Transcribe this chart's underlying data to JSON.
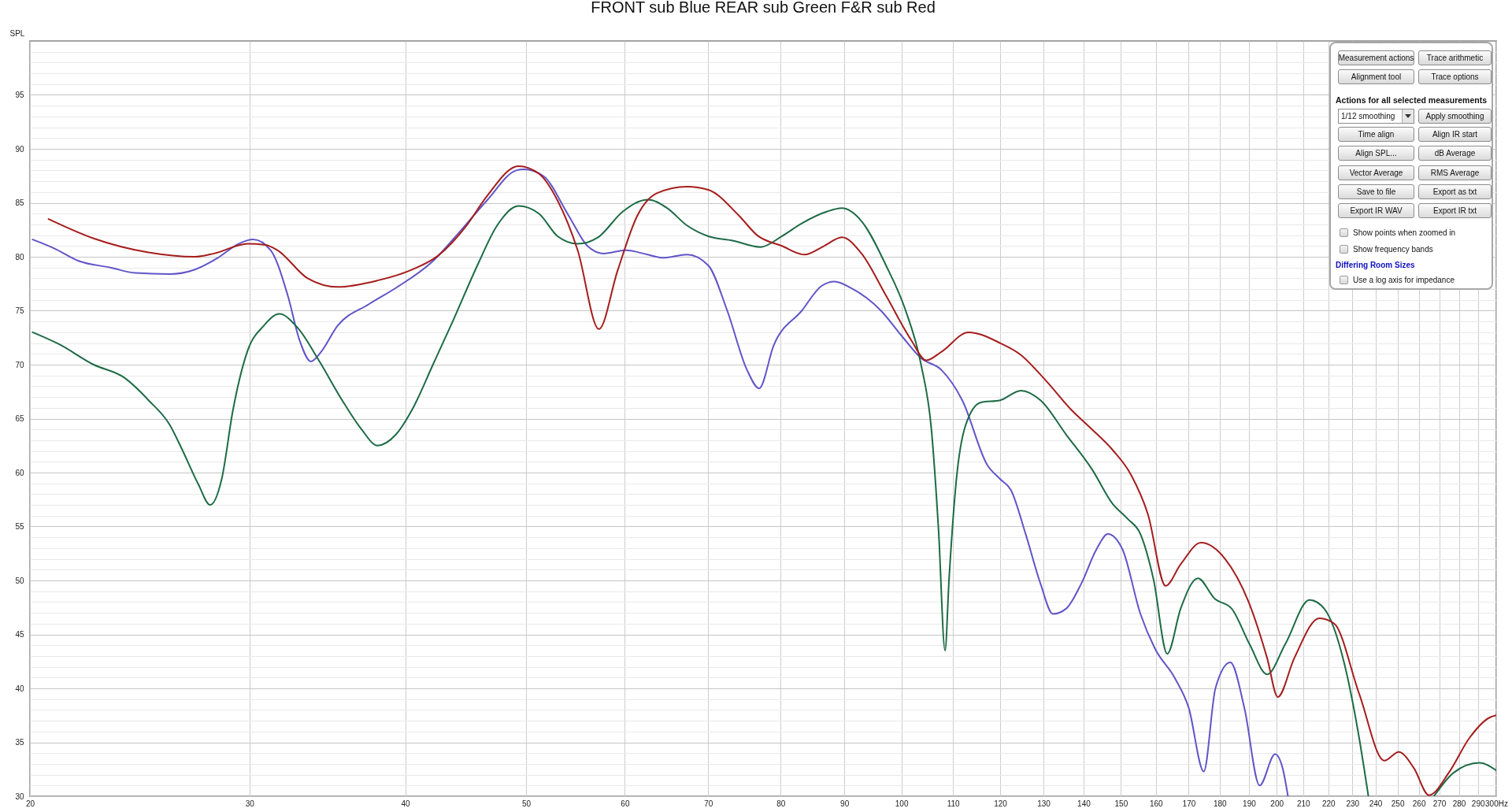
{
  "chart_data": {
    "type": "line",
    "title": "FRONT sub Blue REAR sub Green F&R sub Red",
    "ylabel": "SPL",
    "log": "x",
    "grid": true,
    "line_style": "solid",
    "xlim": [
      20,
      300
    ],
    "ylim": [
      30,
      100
    ],
    "xticks": [
      20,
      30,
      40,
      50,
      60,
      70,
      80,
      90,
      100,
      110,
      120,
      130,
      140,
      150,
      160,
      170,
      180,
      190,
      200,
      210,
      220,
      230,
      240,
      250,
      260,
      270,
      280,
      290,
      {
        "value": 300,
        "label": "300Hz"
      }
    ],
    "yticks": [
      30,
      {
        "value": 31,
        "label": null
      },
      {
        "value": 32,
        "label": null
      },
      {
        "value": 33,
        "label": null
      },
      {
        "value": 34,
        "label": null
      },
      35,
      {
        "value": 36,
        "label": null
      },
      {
        "value": 37,
        "label": null
      },
      {
        "value": 38,
        "label": null
      },
      {
        "value": 39,
        "label": null
      },
      40,
      {
        "value": 41,
        "label": null
      },
      {
        "value": 42,
        "label": null
      },
      {
        "value": 43,
        "label": null
      },
      {
        "value": 44,
        "label": null
      },
      45,
      {
        "value": 46,
        "label": null
      },
      {
        "value": 47,
        "label": null
      },
      {
        "value": 48,
        "label": null
      },
      {
        "value": 49,
        "label": null
      },
      50,
      {
        "value": 51,
        "label": null
      },
      {
        "value": 52,
        "label": null
      },
      {
        "value": 53,
        "label": null
      },
      {
        "value": 54,
        "label": null
      },
      55,
      {
        "value": 56,
        "label": null
      },
      {
        "value": 57,
        "label": null
      },
      {
        "value": 58,
        "label": null
      },
      {
        "value": 59,
        "label": null
      },
      60,
      {
        "value": 61,
        "label": null
      },
      {
        "value": 62,
        "label": null
      },
      {
        "value": 63,
        "label": null
      },
      {
        "value": 64,
        "label": null
      },
      65,
      {
        "value": 66,
        "label": null
      },
      {
        "value": 67,
        "label": null
      },
      {
        "value": 68,
        "label": null
      },
      {
        "value": 69,
        "label": null
      },
      70,
      {
        "value": 71,
        "label": null
      },
      {
        "value": 72,
        "label": null
      },
      {
        "value": 73,
        "label": null
      },
      {
        "value": 74,
        "label": null
      },
      75,
      {
        "value": 76,
        "label": null
      },
      {
        "value": 77,
        "label": null
      },
      {
        "value": 78,
        "label": null
      },
      {
        "value": 79,
        "label": null
      },
      80,
      {
        "value": 81,
        "label": null
      },
      {
        "value": 82,
        "label": null
      },
      {
        "value": 83,
        "label": null
      },
      {
        "value": 84,
        "label": null
      },
      85,
      {
        "value": 86,
        "label": null
      },
      {
        "value": 87,
        "label": null
      },
      {
        "value": 88,
        "label": null
      },
      {
        "value": 89,
        "label": null
      },
      90,
      {
        "value": 91,
        "label": null
      },
      {
        "value": 92,
        "label": null
      },
      {
        "value": 93,
        "label": null
      },
      {
        "value": 94,
        "label": null
      },
      95,
      {
        "value": 96,
        "label": null
      },
      {
        "value": 97,
        "label": null
      },
      {
        "value": 98,
        "label": null
      },
      {
        "value": 99,
        "label": null
      }
    ],
    "series": [
      {
        "color": "#6055c8",
        "x": [
          20.1,
          20.9,
          21.9,
          23.2,
          24.3,
          25.9,
          27.1,
          28.3,
          29.4,
          30.2,
          31.2,
          32.2,
          32.9,
          33.6,
          34.2,
          35.3,
          37.4,
          39.3,
          42.1,
          44.3,
          46.5,
          49.1,
          49.8,
          51.6,
          54.1,
          56.0,
          57.7,
          60.1,
          62.6,
          64.4,
          67.3,
          70.0,
          72.5,
          75.2,
          76.9,
          79.0,
          83.2,
          86.3,
          88.4,
          91.1,
          96.3,
          100,
          103.7,
          107.7,
          111.9,
          117.2,
          120,
          122.4,
          125.8,
          129.3,
          132.3,
          135.6,
          139.4,
          143.4,
          146.4,
          150.4,
          155.5,
          159.7,
          165.8,
          170.0,
          174.8,
          178.6,
          183.6,
          188.4,
          193.8,
          199.4,
          202.2,
          204.2
        ],
        "values": [
          81.6,
          80.8,
          79.6,
          79.0,
          78.5,
          78.4,
          78.8,
          79.9,
          81.2,
          81.6,
          80.6,
          76.4,
          72.3,
          70.3,
          71.1,
          73.6,
          75.6,
          77.1,
          79.6,
          82.4,
          85.2,
          88.0,
          88.1,
          87.5,
          83.8,
          81.0,
          80.3,
          80.6,
          80.2,
          79.9,
          80.2,
          79.2,
          75.0,
          69.5,
          67.8,
          71.8,
          75.0,
          77.3,
          77.7,
          77.1,
          75.0,
          72.7,
          70.6,
          69.5,
          66.7,
          60.7,
          59.4,
          58.4,
          54.3,
          49.7,
          46.9,
          47.4,
          49.7,
          52.9,
          54.3,
          52.9,
          46.9,
          43.7,
          40.9,
          38.2,
          32.3,
          40.0,
          42.4,
          38.2,
          31.0,
          33.9,
          32.6,
          30.0
        ]
      },
      {
        "color": "#1d6b46",
        "x": [
          20.1,
          21.1,
          22.5,
          23.8,
          24.9,
          25.9,
          26.5,
          27.3,
          27.9,
          28.5,
          29.1,
          29.9,
          30.8,
          31.7,
          32.8,
          34.1,
          35.6,
          36.9,
          38.0,
          39.3,
          40.5,
          42.1,
          43.7,
          45.7,
          47.4,
          49.3,
          51.2,
          53.0,
          55.0,
          57.1,
          59.8,
          62.6,
          64.9,
          67.3,
          70.0,
          73.2,
          77.1,
          80.2,
          83.2,
          87.2,
          89.6,
          92.9,
          97.2,
          100.8,
          103.7,
          105.7,
          107.1,
          108.4,
          109.2,
          110.7,
          112.6,
          115.8,
          120,
          124.7,
          129.3,
          135.6,
          142.2,
          147.7,
          151.9,
          155.5,
          159.3,
          163.4,
          167.5,
          172.9,
          178.4,
          184.0,
          190.2,
          196.5,
          203.2,
          212.5,
          218.3,
          226.6,
          232.9,
          236.9,
          250,
          267.4,
          277.4,
          290.9,
          300
        ],
        "values": [
          73.0,
          71.9,
          70.0,
          68.8,
          66.7,
          64.4,
          62.1,
          58.9,
          57.0,
          59.4,
          65.8,
          71.3,
          73.6,
          74.7,
          73.4,
          70.4,
          66.7,
          64.0,
          62.5,
          63.5,
          65.8,
          70.0,
          74.1,
          79.2,
          82.9,
          84.7,
          84.0,
          81.9,
          81.2,
          81.8,
          84.2,
          85.3,
          84.5,
          82.9,
          81.9,
          81.5,
          80.9,
          81.9,
          83.1,
          84.2,
          84.5,
          83.3,
          79.2,
          75.0,
          70.0,
          64.0,
          54.7,
          43.5,
          50.1,
          59.4,
          64.4,
          66.5,
          66.7,
          67.6,
          66.7,
          63.5,
          60.3,
          57.1,
          55.7,
          54.3,
          50.1,
          43.2,
          47.4,
          50.2,
          48.3,
          47.4,
          44.1,
          41.3,
          44.1,
          48.2,
          47.4,
          42.3,
          35.4,
          30.0,
          null,
          30.0,
          32.2,
          33.1,
          32.4
        ]
      },
      {
        "color": "#a51d1d",
        "x": [
          20.7,
          22.5,
          24.9,
          27.1,
          28.1,
          29.9,
          30.9,
          31.6,
          33.4,
          35.3,
          38.0,
          40.5,
          42.5,
          44.8,
          46.5,
          49.3,
          51.2,
          53.0,
          55.0,
          57.2,
          59.2,
          61.4,
          63.7,
          67.3,
          70.0,
          74.1,
          76.6,
          80.2,
          83.6,
          86.7,
          89.6,
          92.9,
          97.2,
          101.8,
          104.7,
          107.7,
          113.2,
          120,
          124.7,
          130.4,
          136.9,
          142.2,
          147.7,
          152.8,
          157.7,
          162.9,
          167.5,
          173.9,
          181.8,
          190.2,
          196.5,
          200.4,
          206.6,
          216.4,
          222.4,
          232.9,
          244.0,
          250.6,
          257.7,
          264.9,
          274.9,
          285.5,
          296.4,
          300
        ],
        "values": [
          83.5,
          81.7,
          80.4,
          80.0,
          80.3,
          81.2,
          81.1,
          80.6,
          78.0,
          77.2,
          77.8,
          78.8,
          80.1,
          82.9,
          85.6,
          88.4,
          87.7,
          85.2,
          80.6,
          73.3,
          78.7,
          83.8,
          85.9,
          86.5,
          86.2,
          83.8,
          82.0,
          81.0,
          80.2,
          81.0,
          81.8,
          80.3,
          76.4,
          72.3,
          70.4,
          71.2,
          73.0,
          72.0,
          70.9,
          68.6,
          65.8,
          64.0,
          62.1,
          59.8,
          56.1,
          49.5,
          51.5,
          53.5,
          52.0,
          47.8,
          42.8,
          39.2,
          42.8,
          46.5,
          46.0,
          39.5,
          33.3,
          34.1,
          32.6,
          30.1,
          32.2,
          35.4,
          37.3,
          37.5
        ]
      }
    ],
    "annotations": [
      "Measurement actions",
      "Trace arithmetic",
      "Alignment tool",
      "Trace options",
      "Actions for all selected measurements",
      "1/12 smoothing",
      "Apply smoothing",
      "Time align",
      "Align IR start",
      "Align SPL...",
      "dB Average",
      "Vector Average",
      "RMS Average",
      "Save to file",
      "Export as txt",
      "Export IR WAV",
      "Export IR txt",
      "Show points when zoomed in",
      "Show frequency bands",
      "Differing Room Sizes",
      "Use a log axis for impedance"
    ]
  }
}
